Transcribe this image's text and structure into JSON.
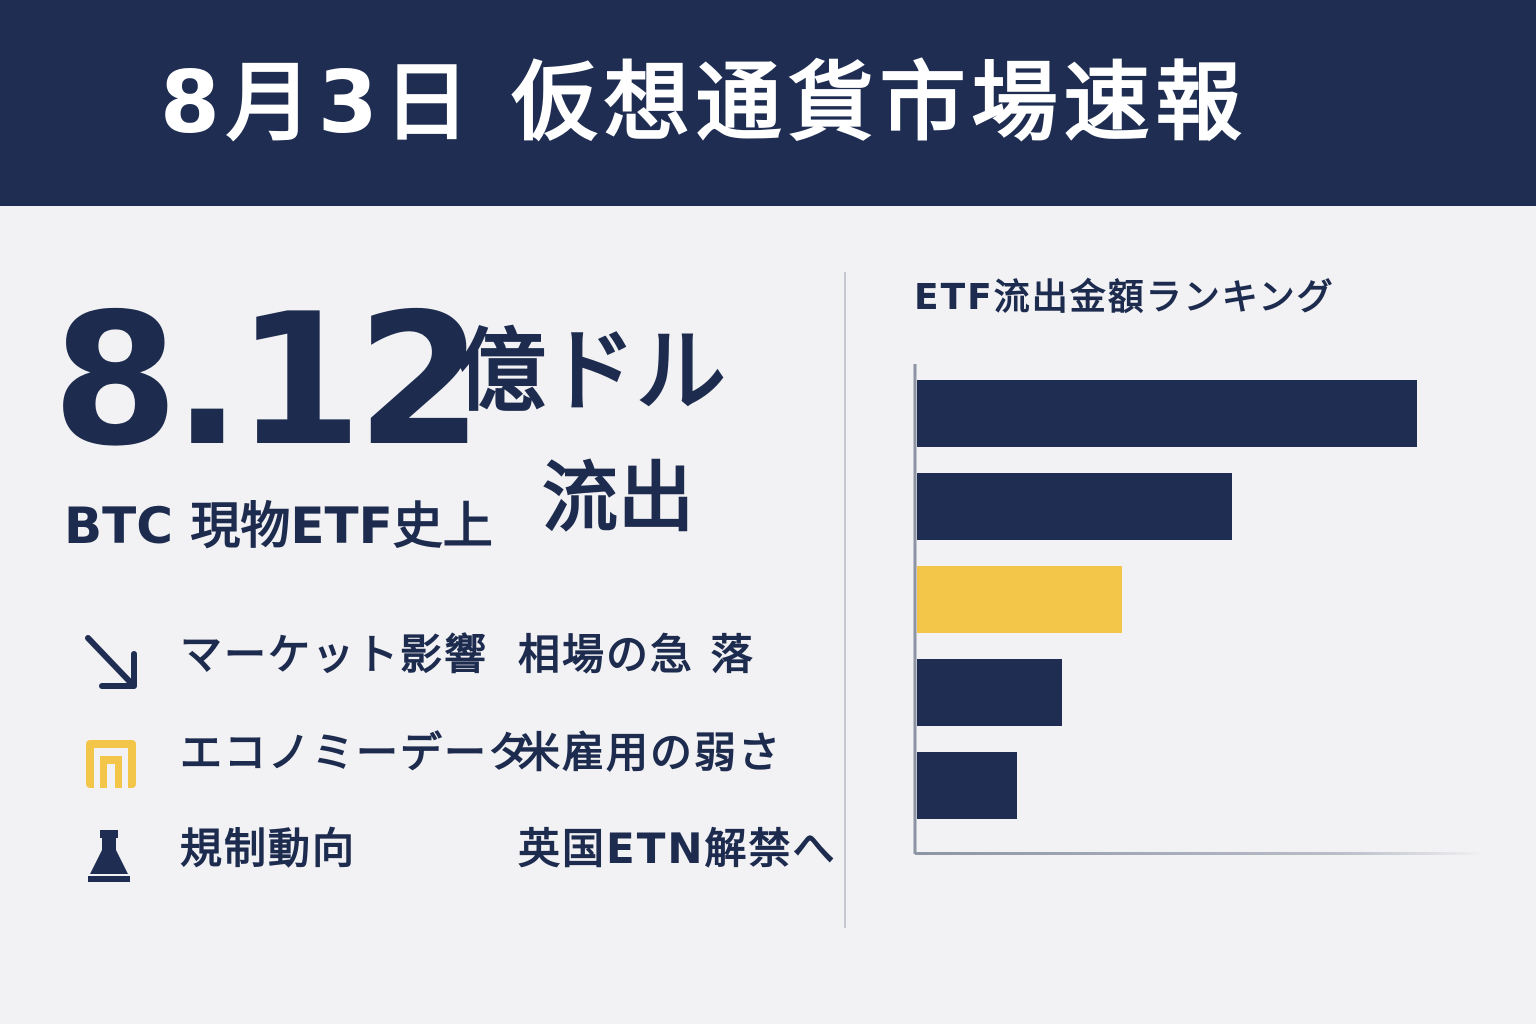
{
  "header": {
    "title": "8月3日  仮想通貨市場速報"
  },
  "headline": {
    "amount": "8.12",
    "unit": "億ドル",
    "subtitle": "BTC 現物ETF史上",
    "outflow": "流出"
  },
  "info_rows": [
    {
      "icon": "arrow-down-right-icon",
      "label": "マーケット影響",
      "value": "相場の急 落"
    },
    {
      "icon": "yellow-square-icon",
      "label": "エコノミーデータ",
      "value": "米雇用の弱さ"
    },
    {
      "icon": "flask-icon",
      "label": "規制動向",
      "value": "英国ETN解禁へ"
    }
  ],
  "colors": {
    "navy": "#1e2d51",
    "accent_yellow": "#f3c64a",
    "background": "#f2f1f3"
  },
  "chart_data": {
    "type": "bar",
    "orientation": "horizontal",
    "title": "ETF流出金額ランキング",
    "categories": [
      "",
      "",
      "",
      "",
      ""
    ],
    "values": [
      100,
      63,
      41,
      29,
      20
    ],
    "highlight_index": 2,
    "xlim": [
      0,
      112
    ],
    "grid": false,
    "legend": "none"
  }
}
